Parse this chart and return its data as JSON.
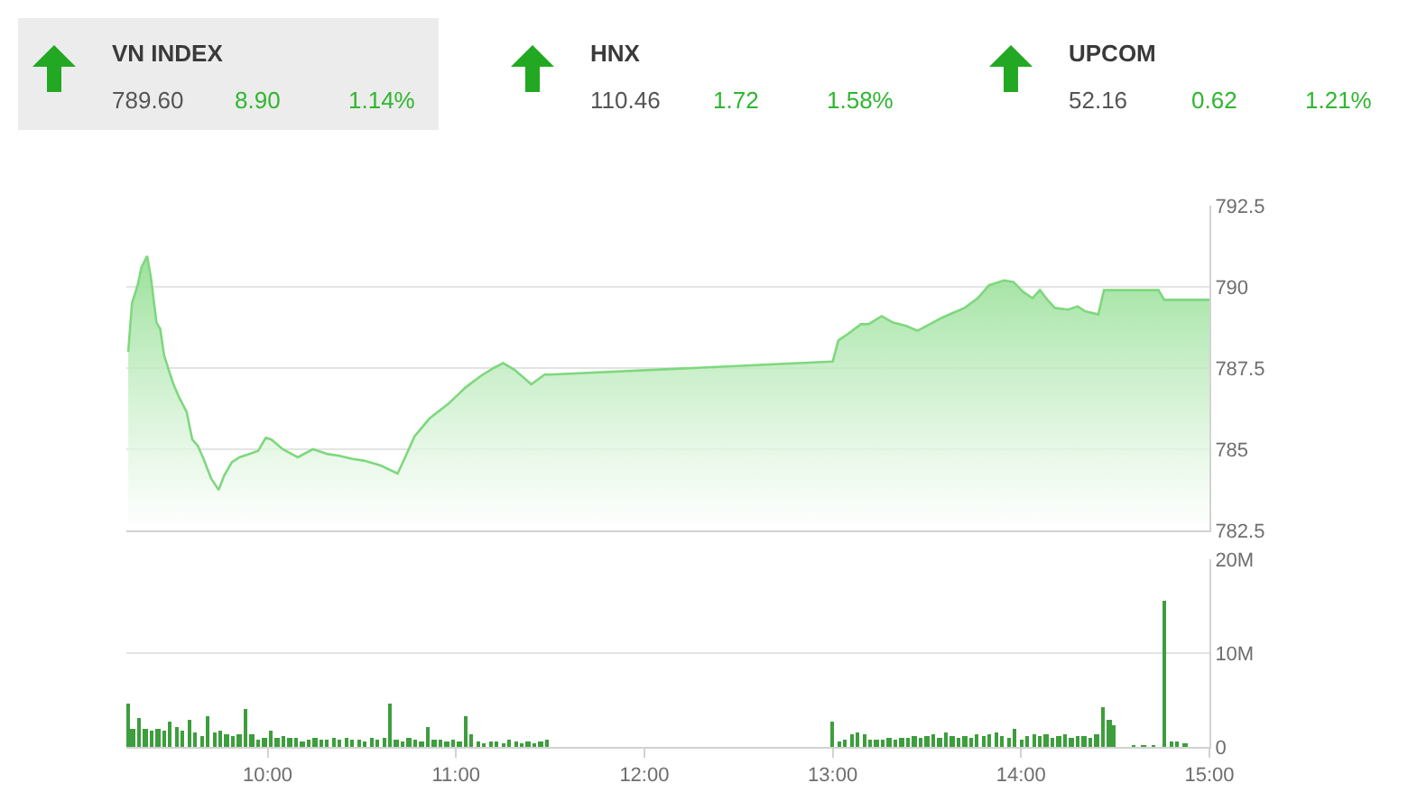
{
  "chart_data": [
    {
      "type": "other",
      "annotations": [
        "VN INDEX",
        "789.60",
        "8.90",
        "1.14%",
        "HNX",
        "110.46",
        "1.72",
        "1.58%",
        "UPCOM",
        "52.16",
        "0.62",
        "1.21%"
      ]
    },
    {
      "type": "area",
      "x": [
        9.26,
        9.28,
        9.31,
        9.33,
        9.36,
        9.38,
        9.41,
        9.43,
        9.45,
        9.48,
        9.5,
        9.53,
        9.57,
        9.6,
        9.63,
        9.66,
        9.7,
        9.74,
        9.77,
        9.81,
        9.85,
        9.9,
        9.95,
        9.99,
        10.02,
        10.08,
        10.16,
        10.24,
        10.32,
        10.38,
        10.45,
        10.51,
        10.6,
        10.69,
        10.73,
        10.78,
        10.86,
        10.96,
        11.05,
        11.13,
        11.2,
        11.25,
        11.31,
        11.4,
        11.47,
        11.5,
        13.0,
        13.03,
        13.08,
        13.15,
        13.19,
        13.26,
        13.32,
        13.39,
        13.45,
        13.5,
        13.58,
        13.64,
        13.7,
        13.77,
        13.83,
        13.91,
        13.96,
        14.01,
        14.06,
        14.1,
        14.14,
        14.18,
        14.25,
        14.3,
        14.34,
        14.41,
        14.44,
        14.73,
        14.76,
        15.0
      ],
      "series": [
        {
          "color": "#7ed87e",
          "values": [
            788.0,
            789.5,
            790.05,
            790.6,
            790.95,
            790.3,
            788.9,
            788.7,
            787.9,
            787.35,
            787.0,
            786.6,
            786.15,
            785.3,
            785.1,
            784.7,
            784.1,
            783.75,
            784.2,
            784.6,
            784.75,
            784.85,
            784.95,
            785.35,
            785.3,
            785.0,
            784.75,
            785.0,
            784.85,
            784.8,
            784.7,
            784.65,
            784.5,
            784.25,
            784.75,
            785.4,
            785.95,
            786.4,
            786.9,
            787.25,
            787.5,
            787.65,
            787.45,
            787.0,
            787.3,
            787.3,
            787.7,
            788.35,
            788.55,
            788.85,
            788.85,
            789.1,
            788.9,
            788.8,
            788.65,
            788.8,
            789.05,
            789.2,
            789.35,
            789.65,
            790.05,
            790.2,
            790.15,
            789.85,
            789.65,
            789.9,
            789.6,
            789.35,
            789.3,
            789.4,
            789.25,
            789.15,
            789.9,
            789.9,
            789.6,
            789.6
          ]
        }
      ],
      "xlim": [
        9.25,
        15
      ],
      "ylim": [
        782.5,
        792.5
      ],
      "yticks": [
        782.5,
        785,
        787.5,
        790,
        792.5
      ],
      "grid": "y",
      "tick_labels": "y"
    },
    {
      "type": "bar",
      "x": [
        9.26,
        9.283,
        9.317,
        9.35,
        9.383,
        9.417,
        9.45,
        9.483,
        9.517,
        9.55,
        9.583,
        9.617,
        9.65,
        9.683,
        9.717,
        9.75,
        9.783,
        9.817,
        9.85,
        9.883,
        9.917,
        9.95,
        9.983,
        10.017,
        10.05,
        10.083,
        10.117,
        10.15,
        10.183,
        10.217,
        10.25,
        10.283,
        10.317,
        10.35,
        10.383,
        10.417,
        10.45,
        10.483,
        10.517,
        10.55,
        10.583,
        10.617,
        10.65,
        10.683,
        10.717,
        10.75,
        10.783,
        10.817,
        10.85,
        10.883,
        10.917,
        10.95,
        10.983,
        11.017,
        11.05,
        11.083,
        11.117,
        11.15,
        11.183,
        11.217,
        11.25,
        11.283,
        11.317,
        11.35,
        11.383,
        11.417,
        11.45,
        11.483,
        13.0,
        13.033,
        13.067,
        13.1,
        13.133,
        13.167,
        13.2,
        13.233,
        13.267,
        13.3,
        13.333,
        13.367,
        13.4,
        13.433,
        13.467,
        13.5,
        13.533,
        13.567,
        13.6,
        13.633,
        13.667,
        13.7,
        13.733,
        13.767,
        13.8,
        13.833,
        13.867,
        13.9,
        13.933,
        13.967,
        14.0,
        14.033,
        14.067,
        14.1,
        14.133,
        14.167,
        14.2,
        14.233,
        14.267,
        14.3,
        14.333,
        14.367,
        14.4,
        14.433,
        14.467,
        14.49,
        14.6,
        14.65,
        14.7,
        14.76,
        14.8,
        14.83,
        14.87
      ],
      "series": [
        {
          "color": "#3d9e3d",
          "values": [
            4600000,
            2000000,
            3000000,
            2000000,
            1800000,
            2000000,
            1700000,
            2600000,
            2100000,
            1800000,
            2800000,
            1500000,
            1200000,
            3200000,
            1600000,
            1700000,
            1400000,
            1100000,
            1300000,
            4000000,
            1400000,
            800000,
            900000,
            1700000,
            1000000,
            1200000,
            900000,
            1000000,
            600000,
            700000,
            900000,
            700000,
            800000,
            900000,
            700000,
            1000000,
            800000,
            700000,
            600000,
            900000,
            800000,
            1000000,
            4700000,
            800000,
            600000,
            1000000,
            700000,
            600000,
            2200000,
            700000,
            800000,
            500000,
            700000,
            600000,
            3300000,
            1400000,
            500000,
            400000,
            600000,
            500000,
            400000,
            800000,
            500000,
            400000,
            500000,
            400000,
            500000,
            700000,
            2600000,
            600000,
            800000,
            1300000,
            1600000,
            1400000,
            700000,
            800000,
            700000,
            900000,
            800000,
            900000,
            1000000,
            1200000,
            900000,
            1100000,
            1300000,
            1000000,
            1500000,
            1100000,
            900000,
            1200000,
            1000000,
            1300000,
            1100000,
            1400000,
            1600000,
            1200000,
            1000000,
            2000000,
            800000,
            1200000,
            1400000,
            1100000,
            1300000,
            1000000,
            1200000,
            1400000,
            1000000,
            1100000,
            1200000,
            1000000,
            1300000,
            4200000,
            2800000,
            2400000,
            100000,
            100000,
            100000,
            15500000,
            500000,
            500000,
            300000
          ]
        }
      ],
      "xlim": [
        9.25,
        15
      ],
      "xticks": [
        {
          "value": 10,
          "label": "10:00"
        },
        {
          "value": 11,
          "label": "11:00"
        },
        {
          "value": 12,
          "label": "12:00"
        },
        {
          "value": 13,
          "label": "13:00"
        },
        {
          "value": 14,
          "label": "14:00"
        },
        {
          "value": 15,
          "label": "15:00"
        }
      ],
      "ylim": [
        0,
        20000000
      ],
      "yticks": [
        {
          "value": 0,
          "label": "0"
        },
        {
          "value": 10000000,
          "label": "10M"
        },
        {
          "value": 20000000,
          "label": "20M"
        }
      ],
      "grid": "y"
    }
  ]
}
